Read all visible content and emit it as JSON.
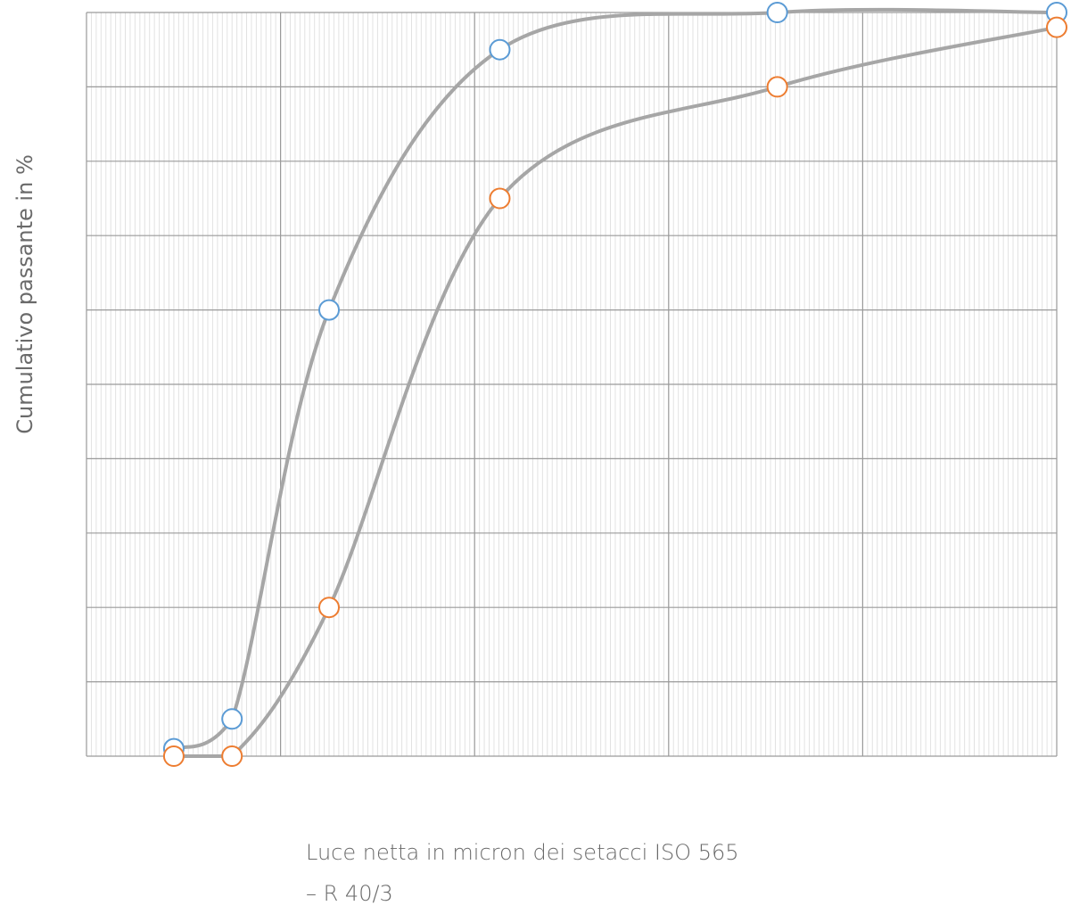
{
  "chart_data": {
    "type": "line",
    "xlabel": "Luce netta in micron dei setacci  ISO 565 – R 40/3",
    "xlabel_lines": [
      "Luce netta in micron dei setacci  ISO 565",
      "– R 40/3"
    ],
    "ylabel": "Cumulativo  passante  in  %",
    "grid": true,
    "ylim": [
      0,
      100
    ],
    "xlim": [
      0,
      5
    ],
    "series": [
      {
        "color": "#5b9bd5",
        "x": [
          0.45,
          0.75,
          1.25,
          2.13,
          3.56,
          5.0
        ],
        "y": [
          1,
          5,
          60,
          95,
          100,
          100
        ]
      },
      {
        "color": "#ed7d31",
        "x": [
          0.45,
          0.75,
          1.25,
          2.13,
          3.56,
          5.0
        ],
        "y": [
          0,
          0,
          20,
          75,
          90,
          98
        ]
      }
    ],
    "line_color": "#a6a6a6"
  }
}
